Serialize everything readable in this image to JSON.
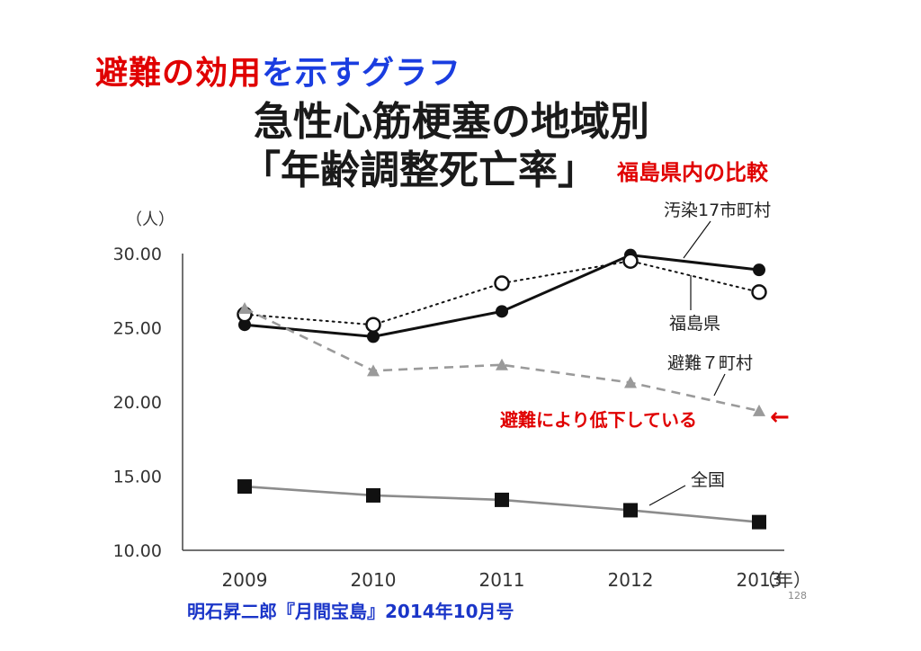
{
  "slide": {
    "title_red": "避難の効用",
    "title_blue": "を示すグラフ",
    "citation": "明石昇二郎『月間宝島』2014年10月号",
    "page_number": "128",
    "colors": {
      "red": "#e00000",
      "blue": "#1a3de0"
    }
  },
  "chart_data": {
    "type": "line",
    "title_line1": "急性心筋梗塞の地域別",
    "title_line2": "「年齢調整死亡率」",
    "subtitle": "福島県内の比較",
    "ylabel": "（人）",
    "xlabel": "（年）",
    "ylim": [
      10,
      30
    ],
    "yticks": [
      "30.00",
      "25.00",
      "20.00",
      "15.00",
      "10.00"
    ],
    "ytick_values": [
      30,
      25,
      20,
      15,
      10
    ],
    "categories": [
      "2009",
      "2010",
      "2011",
      "2012",
      "2013"
    ],
    "grid": false,
    "series": [
      {
        "name": "汚染17市町村",
        "values": [
          25.2,
          24.4,
          26.1,
          29.9,
          28.9
        ],
        "style": "solid-black",
        "marker": "filled-circle",
        "color": "#111111"
      },
      {
        "name": "福島県",
        "values": [
          25.9,
          25.2,
          28.0,
          29.5,
          27.4
        ],
        "style": "dotted-black",
        "marker": "open-circle",
        "color": "#111111"
      },
      {
        "name": "避難７町村",
        "values": [
          26.3,
          22.1,
          22.5,
          21.3,
          19.4
        ],
        "style": "dashed-gray",
        "marker": "gray-triangle",
        "color": "#9a9a9a"
      },
      {
        "name": "全国",
        "values": [
          14.3,
          13.7,
          13.4,
          12.7,
          11.9
        ],
        "style": "solid-gray",
        "marker": "filled-square",
        "color": "#8c8c8c"
      }
    ],
    "annotation": {
      "text": "避難により低下している",
      "arrow": "←",
      "color": "#e00000"
    }
  }
}
